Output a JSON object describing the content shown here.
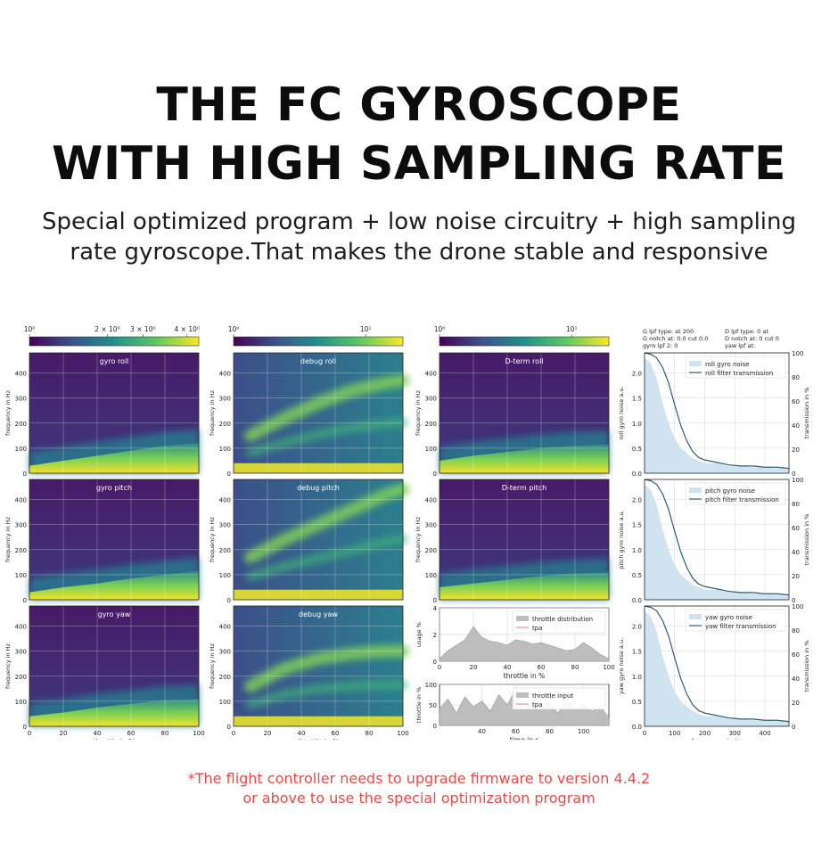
{
  "header": {
    "title_line1": "THE FC GYROSCOPE",
    "title_line2": "WITH HIGH SAMPLING RATE",
    "subtitle_line1": "Special optimized program + low noise circuitry + high sampling",
    "subtitle_line2": "rate gyroscope.That makes the drone stable and responsive"
  },
  "footnote": {
    "line1": "*The flight controller needs to upgrade firmware to version 4.4.2",
    "line2": "or above to use the special optimization program"
  },
  "colors": {
    "accent_note": "#e84a4a",
    "viridis_dark": "#440154",
    "viridis_mid": "#21918c",
    "viridis_bright": "#fde725",
    "noise_fill": "#cfe3f0",
    "filter_line": "#2e5f6e"
  },
  "chart_data": [
    {
      "type": "heatmap",
      "column": "gyro",
      "colorbar_ticks": [
        "10⁰",
        "2 × 10⁰",
        "3 × 10⁰",
        "4 × 10⁰"
      ],
      "xlabel": "throttle in %",
      "ylabel": "frequency in Hz",
      "xlim": [
        0,
        100
      ],
      "ylim": [
        0,
        480
      ],
      "x_ticks": [
        0,
        20,
        40,
        60,
        80,
        100
      ],
      "y_ticks": [
        0,
        100,
        200,
        300,
        400
      ],
      "panels": [
        {
          "title": "gyro roll",
          "noise_band_x": [
            0,
            20,
            40,
            60,
            80,
            100
          ],
          "noise_band_top_hz": [
            30,
            50,
            70,
            90,
            110,
            120
          ]
        },
        {
          "title": "gyro pitch",
          "noise_band_x": [
            0,
            20,
            40,
            60,
            80,
            100
          ],
          "noise_band_top_hz": [
            30,
            50,
            65,
            85,
            100,
            115
          ]
        },
        {
          "title": "gyro yaw",
          "noise_band_x": [
            0,
            20,
            40,
            60,
            80,
            100
          ],
          "noise_band_top_hz": [
            40,
            55,
            75,
            90,
            105,
            110
          ]
        }
      ]
    },
    {
      "type": "heatmap",
      "column": "debug",
      "colorbar_ticks": [
        "10⁰",
        "10¹"
      ],
      "xlabel": "throttle in %",
      "ylabel": "frequency in Hz",
      "xlim": [
        0,
        100
      ],
      "ylim": [
        0,
        480
      ],
      "x_ticks": [
        0,
        20,
        40,
        60,
        80,
        100
      ],
      "y_ticks": [
        0,
        100,
        200,
        300,
        400
      ],
      "panels": [
        {
          "title": "debug roll",
          "harmonic_x": [
            10,
            30,
            50,
            70,
            90,
            100
          ],
          "harmonic_hz": [
            150,
            220,
            280,
            330,
            360,
            370
          ]
        },
        {
          "title": "debug pitch",
          "harmonic_x": [
            10,
            30,
            50,
            70,
            90,
            100
          ],
          "harmonic_hz": [
            170,
            240,
            300,
            360,
            420,
            440
          ]
        },
        {
          "title": "debug yaw",
          "harmonic_x": [
            10,
            30,
            50,
            70,
            90,
            100
          ],
          "harmonic_hz": [
            160,
            230,
            270,
            290,
            300,
            300
          ]
        }
      ]
    },
    {
      "type": "heatmap",
      "column": "dterm",
      "colorbar_ticks": [
        "10⁰",
        "10¹"
      ],
      "xlabel": "throttle in %",
      "ylabel": "frequency in Hz",
      "xlim": [
        0,
        100
      ],
      "ylim": [
        0,
        480
      ],
      "x_ticks": [
        0,
        20,
        40,
        60,
        80,
        100
      ],
      "y_ticks": [
        0,
        100,
        200,
        300,
        400
      ],
      "panels": [
        {
          "title": "D-term roll",
          "noise_band_x": [
            0,
            20,
            40,
            60,
            80,
            100
          ],
          "noise_band_top_hz": [
            50,
            70,
            85,
            100,
            110,
            115
          ]
        },
        {
          "title": "D-term pitch",
          "noise_band_x": [
            0,
            20,
            40,
            60,
            80,
            100
          ],
          "noise_band_top_hz": [
            50,
            65,
            80,
            95,
            105,
            110
          ]
        }
      ]
    },
    {
      "type": "area",
      "name": "throttle-distribution",
      "xlabel": "throttle in %",
      "ylabel": "usage %",
      "xlim": [
        0,
        100
      ],
      "ylim": [
        0,
        4
      ],
      "x_ticks": [
        0,
        20,
        40,
        60,
        80,
        100
      ],
      "y_ticks": [
        0,
        2,
        4
      ],
      "legend": [
        "throttle distribution",
        "tpa"
      ],
      "x": [
        0,
        5,
        10,
        15,
        20,
        25,
        30,
        35,
        40,
        45,
        50,
        55,
        60,
        65,
        70,
        75,
        80,
        85,
        90,
        95,
        100
      ],
      "values": [
        0.2,
        0.8,
        1.2,
        1.6,
        2.6,
        1.8,
        1.5,
        1.4,
        1.2,
        1.6,
        1.5,
        1.3,
        1.4,
        1.2,
        1.0,
        0.8,
        0.9,
        1.4,
        1.0,
        0.5,
        0.2
      ]
    },
    {
      "type": "area",
      "name": "throttle-input",
      "xlabel": "time in s",
      "ylabel": "throttle in %",
      "xlim": [
        15,
        115
      ],
      "ylim": [
        0,
        100
      ],
      "x_ticks": [
        40,
        60,
        80,
        100
      ],
      "y_ticks": [
        0,
        50,
        100
      ],
      "legend": [
        "throttle input",
        "tpa"
      ],
      "x": [
        15,
        20,
        25,
        30,
        35,
        40,
        45,
        50,
        55,
        60,
        65,
        70,
        75,
        80,
        85,
        90,
        95,
        100,
        105,
        110,
        115
      ],
      "values": [
        40,
        65,
        30,
        70,
        45,
        60,
        35,
        75,
        50,
        90,
        40,
        60,
        45,
        55,
        30,
        65,
        40,
        50,
        35,
        45,
        20
      ]
    },
    {
      "type": "line",
      "column": "spectra",
      "filter_info": [
        "G lpf type:  at 200",
        "G notch at:  0.0 cut 0.0",
        "gyro lpf 2:  0",
        "D lpf type:  0 at",
        "D notch at:  0 cut 0",
        "yaw lpf at:"
      ],
      "xlabel": "frequency in hz",
      "ylabel2": "transmission in %",
      "xlim": [
        0,
        480
      ],
      "ylim": [
        0,
        2.4
      ],
      "y2lim": [
        0,
        100
      ],
      "x_ticks": [
        0,
        100,
        200,
        300,
        400
      ],
      "y_ticks": [
        0.0,
        0.5,
        1.0,
        1.5,
        2.0
      ],
      "y2_ticks": [
        0,
        20,
        40,
        60,
        80,
        100
      ],
      "panels": [
        {
          "ylabel": "roll gyro noise a.u.",
          "legend": [
            "roll gyro noise",
            "roll filter transmission"
          ]
        },
        {
          "ylabel": "pitch gyro noise a.u.",
          "legend": [
            "pitch gyro noise",
            "pitch filter transmission"
          ]
        },
        {
          "ylabel": "yaw gyro noise a.u.",
          "legend": [
            "yaw gyro noise",
            "yaw filter transmission"
          ]
        }
      ],
      "frequency_hz": [
        0,
        20,
        40,
        60,
        80,
        100,
        120,
        140,
        160,
        180,
        200,
        240,
        280,
        320,
        360,
        400,
        440,
        480
      ],
      "transmission_pct": [
        100,
        99,
        96,
        88,
        75,
        57,
        40,
        27,
        18,
        13,
        11,
        9,
        7,
        6,
        6,
        5,
        5,
        4
      ],
      "noise_au": [
        2.3,
        2.2,
        1.9,
        1.4,
        1.0,
        0.7,
        0.5,
        0.4,
        0.3,
        0.25,
        0.2,
        0.2,
        0.15,
        0.15,
        0.12,
        0.12,
        0.1,
        0.1
      ]
    }
  ]
}
